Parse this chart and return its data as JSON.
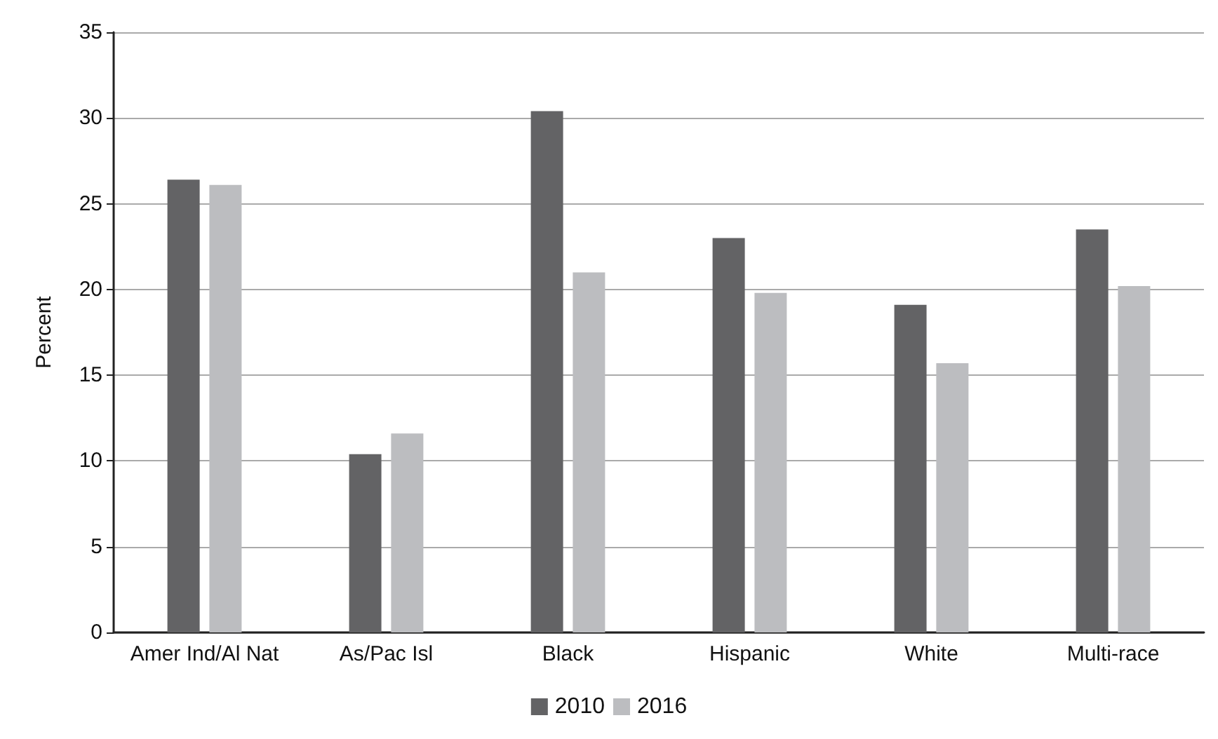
{
  "chart_data": {
    "type": "bar",
    "ylabel": "Percent",
    "categories": [
      "Amer Ind/Al Nat",
      "As/Pac Isl",
      "Black",
      "Hispanic",
      "White",
      "Multi-race"
    ],
    "series": [
      {
        "name": "2010",
        "color": "#636365",
        "values": [
          26.4,
          10.4,
          30.4,
          23.0,
          19.1,
          23.5
        ]
      },
      {
        "name": "2016",
        "color": "#bcbdc0",
        "values": [
          26.1,
          11.6,
          21.0,
          19.8,
          15.7,
          20.2
        ]
      }
    ],
    "ylim": [
      0,
      35
    ],
    "yticks": [
      0,
      5,
      10,
      15,
      20,
      25,
      30,
      35
    ],
    "grid": "y",
    "legend": "bottom"
  }
}
